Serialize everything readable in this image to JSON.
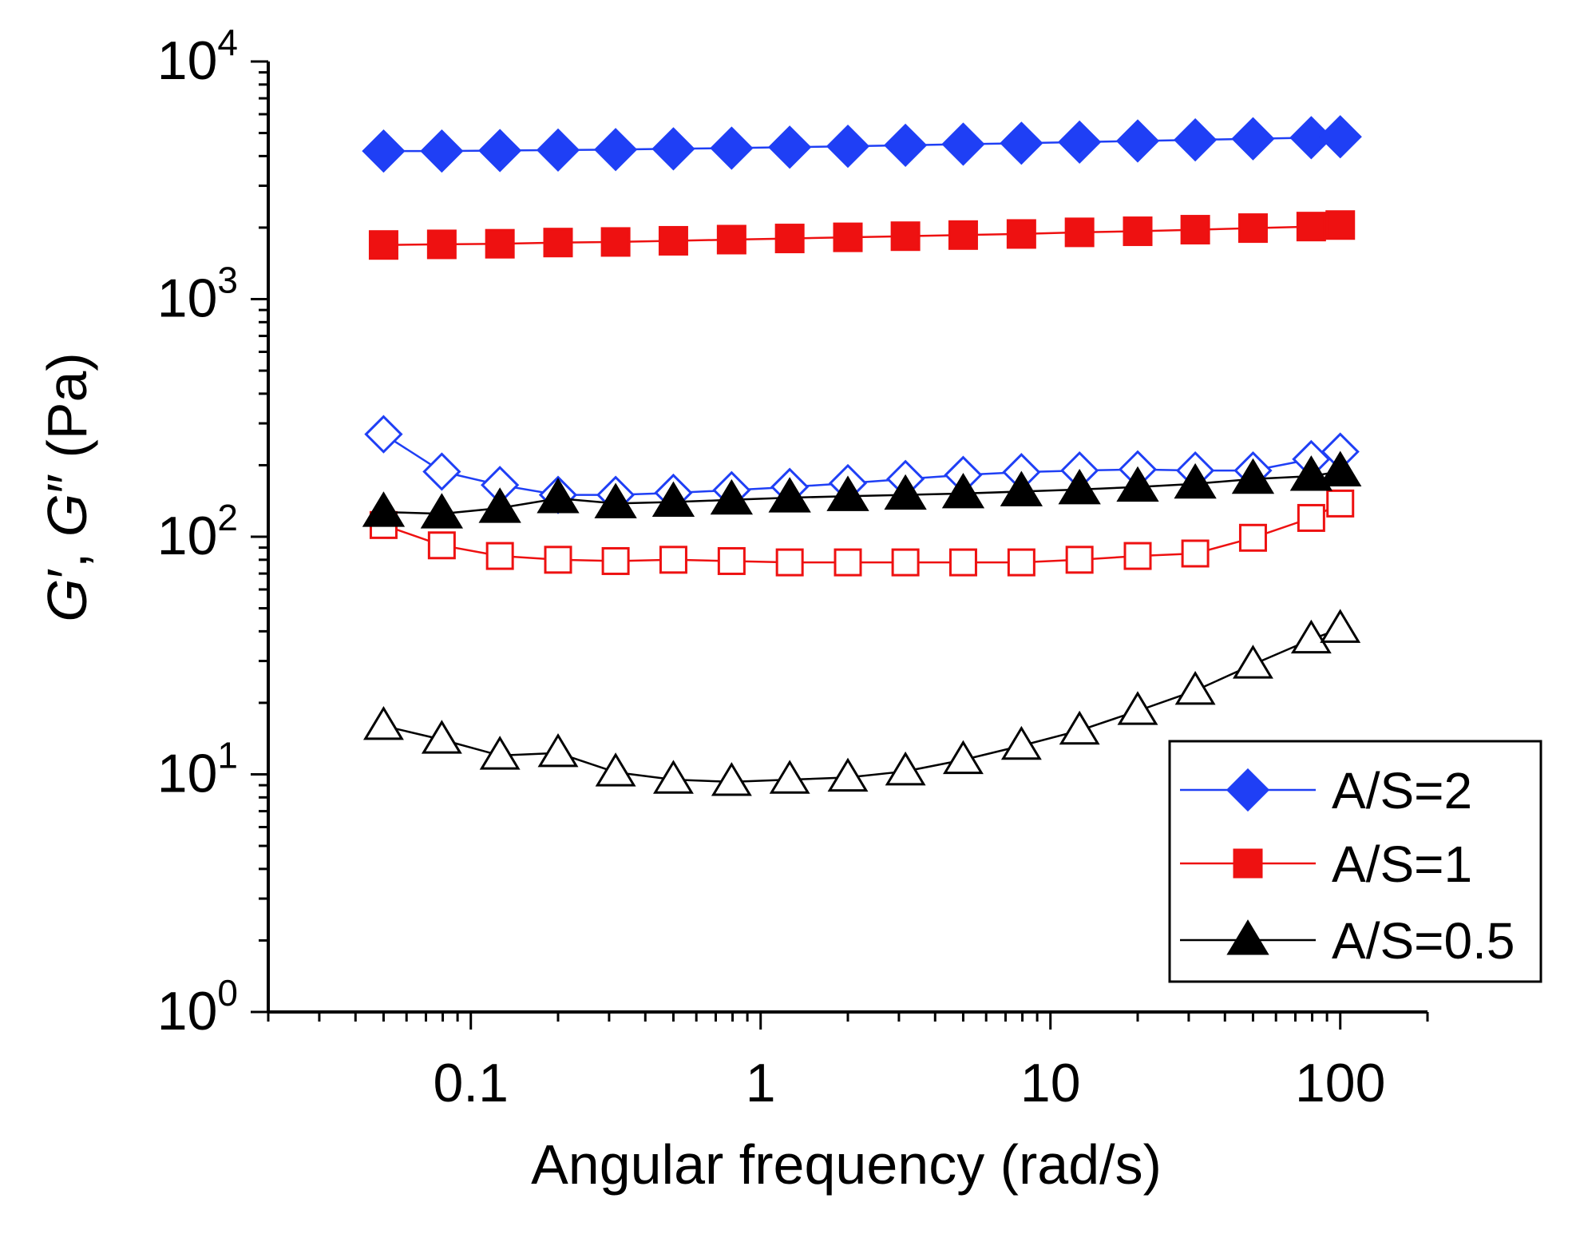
{
  "chart_data": {
    "type": "scatter",
    "title": "",
    "xlabel": "Angular frequency (rad/s)",
    "ylabel": "G′, G″ (Pa)",
    "ylabel_parts": {
      "g1": "G",
      "prime1": "′",
      "sep": ", ",
      "g2": "G",
      "prime2": "″",
      "unit": " (Pa)"
    },
    "x_scale": "log",
    "y_scale": "log",
    "xlim": [
      0.02,
      200
    ],
    "ylim": [
      1,
      10000
    ],
    "x_ticks": [
      {
        "value": 0.1,
        "label": "0.1"
      },
      {
        "value": 1,
        "label": "1"
      },
      {
        "value": 10,
        "label": "10"
      },
      {
        "value": 100,
        "label": "100"
      }
    ],
    "y_ticks": [
      {
        "value": 1,
        "base": "10",
        "exp": "0"
      },
      {
        "value": 10,
        "base": "10",
        "exp": "1"
      },
      {
        "value": 100,
        "base": "10",
        "exp": "2"
      },
      {
        "value": 1000,
        "base": "10",
        "exp": "3"
      },
      {
        "value": 10000,
        "base": "10",
        "exp": "4"
      }
    ],
    "legend": {
      "position": "bottom-right",
      "entries": [
        {
          "label": "A/S=2",
          "marker": "diamond",
          "color": "#1f3ff5"
        },
        {
          "label": "A/S=1",
          "marker": "square",
          "color": "#ee1111"
        },
        {
          "label": "A/S=0.5",
          "marker": "triangle",
          "color": "#000000"
        }
      ]
    },
    "x": [
      0.05,
      0.0794,
      0.126,
      0.2,
      0.316,
      0.5,
      0.794,
      1.26,
      2,
      3.16,
      5,
      7.94,
      12.6,
      20,
      31.6,
      50,
      79.4,
      100
    ],
    "series": [
      {
        "name": "A/S=2 G′",
        "group": "A/S=2",
        "modulus": "G′",
        "marker": "diamond",
        "filled": true,
        "color": "#1f3ff5",
        "values": [
          4200,
          4200,
          4220,
          4240,
          4260,
          4290,
          4320,
          4360,
          4400,
          4440,
          4490,
          4530,
          4580,
          4630,
          4680,
          4730,
          4780,
          4820
        ]
      },
      {
        "name": "A/S=2 G″",
        "group": "A/S=2",
        "modulus": "G″",
        "marker": "diamond",
        "filled": false,
        "color": "#1f3ff5",
        "values": [
          270,
          188,
          165,
          150,
          150,
          153,
          157,
          162,
          168,
          175,
          182,
          187,
          190,
          192,
          190,
          190,
          212,
          228
        ]
      },
      {
        "name": "A/S=1 G′",
        "group": "A/S=1",
        "modulus": "G′",
        "marker": "square",
        "filled": true,
        "color": "#ee1111",
        "values": [
          1690,
          1700,
          1710,
          1730,
          1740,
          1760,
          1780,
          1800,
          1820,
          1840,
          1860,
          1880,
          1910,
          1930,
          1960,
          1990,
          2020,
          2050
        ]
      },
      {
        "name": "A/S=1 G″",
        "group": "A/S=1",
        "modulus": "G″",
        "marker": "square",
        "filled": false,
        "color": "#ee1111",
        "values": [
          112,
          92,
          83,
          80,
          79,
          80,
          79,
          78,
          78,
          78,
          78,
          78,
          80,
          83,
          85,
          99,
          120,
          138
        ]
      },
      {
        "name": "A/S=0.5 G′",
        "group": "A/S=0.5",
        "modulus": "G′",
        "marker": "triangle",
        "filled": true,
        "color": "#000000",
        "values": [
          127,
          125,
          132,
          145,
          138,
          140,
          143,
          146,
          148,
          150,
          152,
          155,
          158,
          162,
          167,
          175,
          180,
          188
        ]
      },
      {
        "name": "A/S=0.5 G″",
        "group": "A/S=0.5",
        "modulus": "G″",
        "marker": "triangle",
        "filled": false,
        "color": "#000000",
        "values": [
          16,
          14,
          12,
          12.3,
          10.2,
          9.5,
          9.3,
          9.5,
          9.7,
          10.3,
          11.5,
          13.2,
          15.3,
          18.5,
          22.5,
          29,
          37,
          41
        ]
      }
    ]
  }
}
